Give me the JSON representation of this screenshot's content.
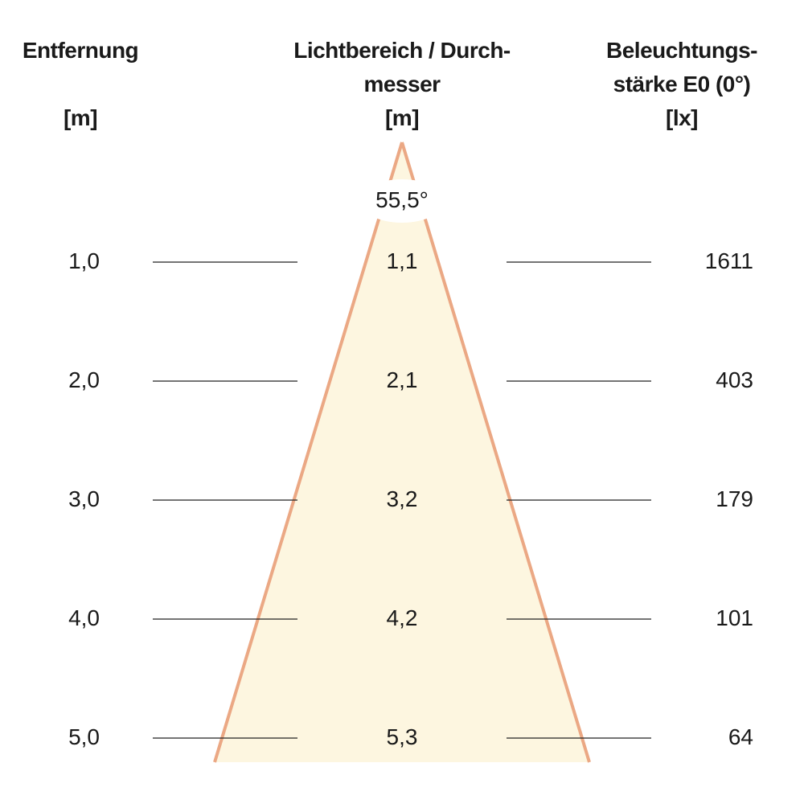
{
  "headers": {
    "distance": {
      "line1": "Entfernung",
      "unit": "[m]"
    },
    "diameter": {
      "line1": "Lichtbereich / Durch-",
      "line2": "messer",
      "unit": "[m]"
    },
    "illuminance": {
      "line1": "Beleuchtungs-",
      "line2": "stärke E0 (0°)",
      "unit": "[lx]"
    }
  },
  "beam_angle": "55,5°",
  "rows": [
    {
      "distance": "1,0",
      "diameter": "1,1",
      "illuminance": "1611"
    },
    {
      "distance": "2,0",
      "diameter": "2,1",
      "illuminance": "403"
    },
    {
      "distance": "3,0",
      "diameter": "3,2",
      "illuminance": "179"
    },
    {
      "distance": "4,0",
      "diameter": "4,2",
      "illuminance": "101"
    },
    {
      "distance": "5,0",
      "diameter": "5,3",
      "illuminance": "64"
    }
  ],
  "colors": {
    "cone_fill": "#fdf6e0",
    "cone_edge": "#eba884",
    "lines": "#222222"
  }
}
